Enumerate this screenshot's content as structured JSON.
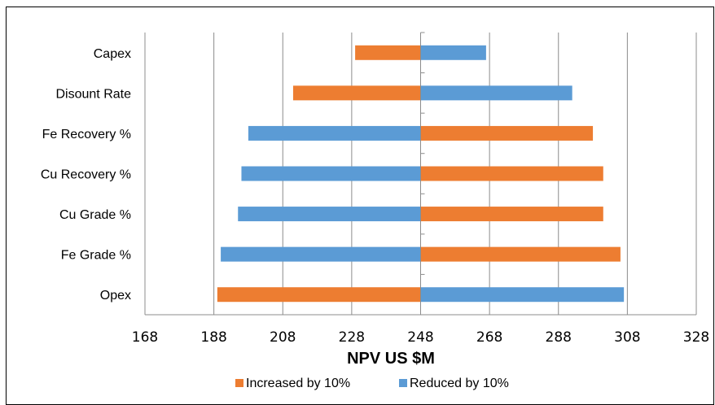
{
  "chart_data": {
    "type": "bar",
    "orientation": "horizontal",
    "subtype": "tornado",
    "baseline": 248,
    "categories": [
      "Capex",
      "Disount Rate",
      "Fe Recovery %",
      "Cu Recovery %",
      "Cu Grade %",
      "Fe Grade %",
      "Opex"
    ],
    "series": [
      {
        "name": "Increased by 10%",
        "color": "#ED7D31",
        "values": [
          229,
          211,
          298,
          301,
          301,
          306,
          189
        ]
      },
      {
        "name": "Reduced by 10%",
        "color": "#5B9BD5",
        "values": [
          267,
          292,
          198,
          196,
          195,
          190,
          307
        ]
      }
    ],
    "xlabel": "NPV US $M",
    "xlim": [
      168,
      328
    ],
    "xticks": [
      "168",
      "188",
      "208",
      "228",
      "248",
      "268",
      "288",
      "308",
      "328"
    ],
    "grid": "vertical",
    "legend_position": "bottom"
  }
}
